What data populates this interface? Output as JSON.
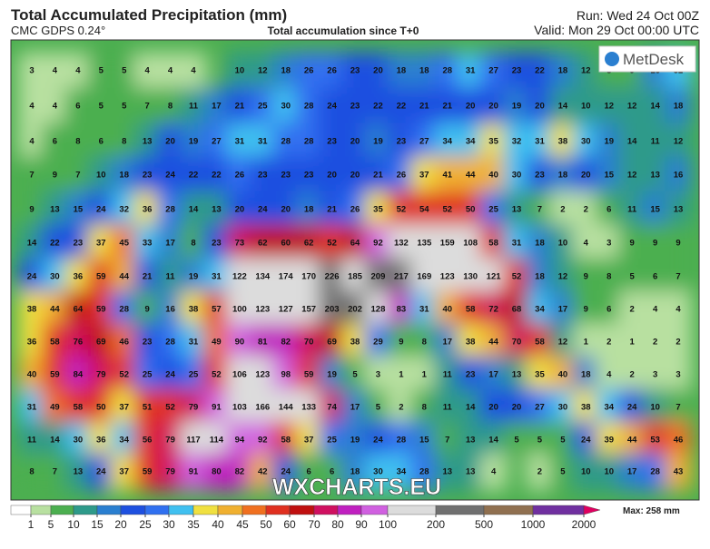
{
  "header": {
    "title": "Total Accumulated Precipitation (mm)",
    "model": "CMC GDPS 0.24°",
    "subtitle": "Total accumulation since T+0",
    "run": "Run: Wed 24 Oct 00Z",
    "valid": "Valid: Mon 29 Oct 00:00 UTC"
  },
  "logo": "MetDesk",
  "watermark": "WXCHARTS.EU",
  "grid": {
    "rows": [
      [
        3,
        4,
        4,
        5,
        5,
        4,
        4,
        4,
        null,
        10,
        12,
        18,
        26,
        26,
        23,
        20,
        18,
        18,
        28,
        31,
        27,
        23,
        22,
        18,
        12,
        8,
        9,
        16,
        32
      ],
      [
        4,
        4,
        6,
        5,
        5,
        7,
        8,
        11,
        17,
        21,
        25,
        30,
        28,
        24,
        23,
        22,
        22,
        21,
        21,
        20,
        20,
        19,
        20,
        14,
        10,
        12,
        12,
        14,
        18
      ],
      [
        4,
        6,
        8,
        6,
        8,
        13,
        20,
        19,
        27,
        31,
        31,
        28,
        28,
        23,
        20,
        19,
        23,
        27,
        34,
        34,
        35,
        32,
        31,
        38,
        30,
        19,
        14,
        11,
        12
      ],
      [
        7,
        9,
        7,
        10,
        18,
        23,
        24,
        22,
        22,
        26,
        23,
        23,
        23,
        20,
        20,
        21,
        26,
        37,
        41,
        44,
        40,
        30,
        23,
        18,
        20,
        15,
        12,
        13,
        16
      ],
      [
        9,
        13,
        15,
        24,
        32,
        36,
        28,
        14,
        13,
        20,
        24,
        20,
        18,
        21,
        26,
        35,
        52,
        54,
        52,
        50,
        25,
        13,
        7,
        2,
        2,
        6,
        11,
        15,
        13
      ],
      [
        14,
        22,
        23,
        37,
        45,
        33,
        17,
        8,
        23,
        73,
        62,
        60,
        62,
        52,
        64,
        92,
        132,
        135,
        159,
        108,
        58,
        31,
        18,
        10,
        4,
        3,
        9,
        9,
        9
      ],
      [
        24,
        30,
        36,
        59,
        44,
        21,
        11,
        19,
        31,
        122,
        134,
        174,
        170,
        226,
        185,
        209,
        217,
        169,
        123,
        130,
        121,
        52,
        18,
        12,
        9,
        8,
        5,
        6,
        7
      ],
      [
        38,
        44,
        64,
        59,
        28,
        9,
        16,
        38,
        57,
        100,
        123,
        127,
        157,
        203,
        202,
        128,
        83,
        31,
        40,
        58,
        72,
        68,
        34,
        17,
        9,
        6,
        2,
        4,
        4
      ],
      [
        36,
        58,
        76,
        69,
        46,
        23,
        28,
        31,
        49,
        90,
        81,
        82,
        70,
        69,
        38,
        29,
        9,
        8,
        17,
        38,
        44,
        70,
        58,
        12,
        1,
        2,
        1,
        2,
        2
      ],
      [
        40,
        59,
        84,
        79,
        52,
        25,
        24,
        25,
        52,
        106,
        123,
        98,
        59,
        19,
        5,
        3,
        1,
        1,
        11,
        23,
        17,
        13,
        35,
        40,
        18,
        4,
        2,
        3,
        3
      ],
      [
        31,
        49,
        58,
        50,
        37,
        51,
        52,
        79,
        91,
        103,
        166,
        144,
        133,
        74,
        17,
        5,
        2,
        8,
        11,
        14,
        20,
        20,
        27,
        30,
        38,
        34,
        24,
        10,
        7
      ],
      [
        11,
        14,
        30,
        36,
        34,
        56,
        79,
        117,
        114,
        94,
        92,
        58,
        37,
        25,
        19,
        24,
        28,
        15,
        7,
        13,
        14,
        5,
        5,
        5,
        24,
        39,
        44,
        53,
        46
      ],
      [
        8,
        7,
        13,
        24,
        37,
        59,
        79,
        91,
        80,
        82,
        42,
        24,
        6,
        6,
        18,
        30,
        34,
        28,
        13,
        13,
        4,
        null,
        2,
        5,
        10,
        10,
        17,
        28,
        43
      ]
    ]
  },
  "colorbar": {
    "ticks": [
      1,
      5,
      10,
      15,
      20,
      25,
      30,
      35,
      40,
      45,
      50,
      60,
      70,
      80,
      90,
      100,
      200,
      500,
      1000,
      2000
    ],
    "colors": [
      "#ffffff",
      "#b8e0a0",
      "#4caf50",
      "#2e9a8a",
      "#2a7fd0",
      "#1e50e0",
      "#3070f0",
      "#40c0f0",
      "#f0e040",
      "#f0b030",
      "#f07020",
      "#e03020",
      "#c01010",
      "#d01060",
      "#c020c0",
      "#d060e0",
      "#dcdcdc",
      "#707070",
      "#907050",
      "#7030a0",
      "#e00060"
    ],
    "max_label": "Max: 258 mm"
  }
}
